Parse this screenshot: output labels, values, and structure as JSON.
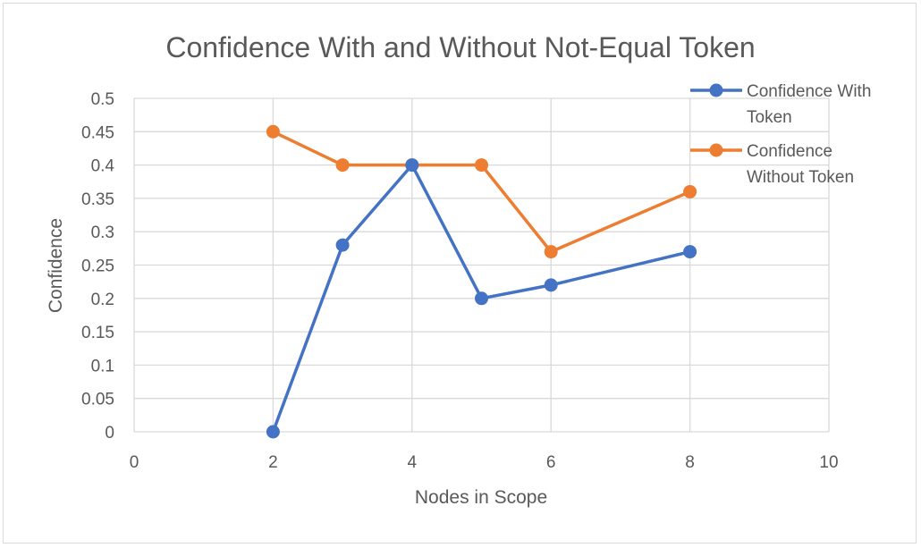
{
  "chart_data": {
    "type": "scatter",
    "title": "Confidence With and Without Not-Equal Token",
    "xlabel": "Nodes in Scope",
    "ylabel": "Confidence",
    "xlim": [
      0,
      10
    ],
    "ylim": [
      0,
      0.5
    ],
    "x_ticks": [
      "0",
      "2",
      "4",
      "6",
      "8",
      "10"
    ],
    "y_ticks": [
      "0",
      "0.05",
      "0.1",
      "0.15",
      "0.2",
      "0.25",
      "0.3",
      "0.35",
      "0.4",
      "0.45",
      "0.5"
    ],
    "grid": "vertical and horizontal",
    "legend_position": "top-right",
    "series": [
      {
        "name": "Confidence With Token",
        "legend_lines": [
          "Confidence With",
          "Token"
        ],
        "color": "#4472c4",
        "x": [
          2,
          3,
          4,
          5,
          6,
          8
        ],
        "y": [
          0,
          0.28,
          0.4,
          0.2,
          0.22,
          0.27
        ]
      },
      {
        "name": "Confidence Without Token",
        "legend_lines": [
          "Confidence",
          "Without Token"
        ],
        "color": "#ed7d31",
        "x": [
          2,
          3,
          4,
          5,
          6,
          8
        ],
        "y": [
          0.45,
          0.4,
          0.4,
          0.4,
          0.27,
          0.36
        ]
      }
    ]
  }
}
